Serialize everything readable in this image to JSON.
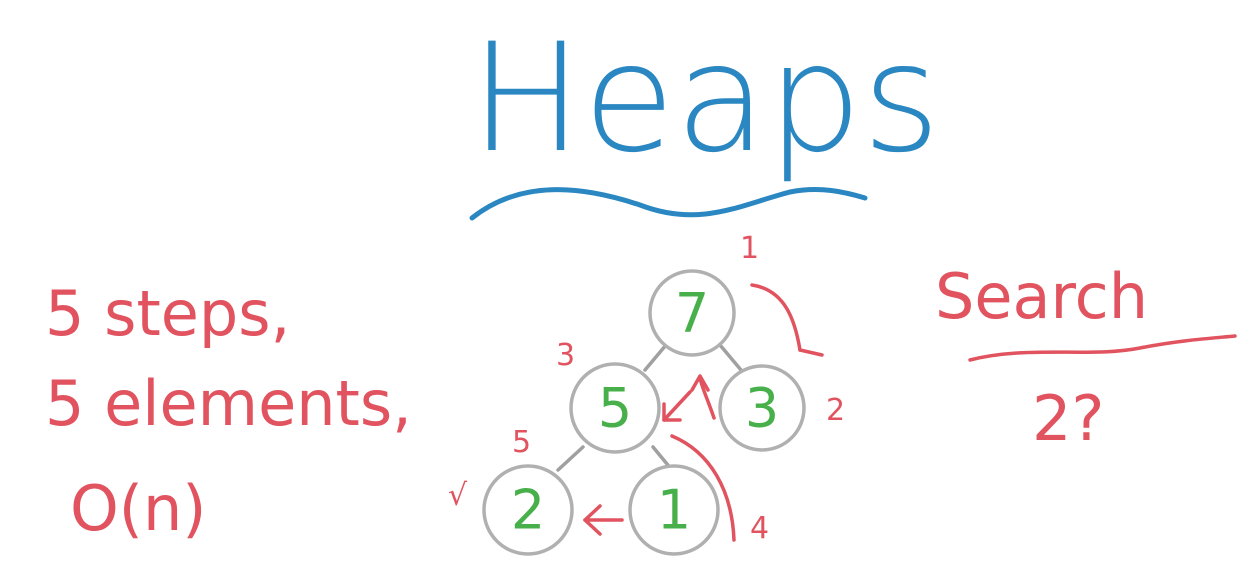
{
  "title": "Heaps",
  "left_notes": [
    "5 steps,",
    "5 elements,",
    "O(n)"
  ],
  "right_notes": {
    "heading": "Search",
    "query": "2?"
  },
  "tree": {
    "nodes": [
      "7",
      "5",
      "3",
      "2",
      "1"
    ]
  },
  "step_labels": [
    "1",
    "2",
    "3",
    "4",
    "5"
  ],
  "checkmark": "√",
  "colors": {
    "title": "#2a87c2",
    "annotation": "#e0535f",
    "node_value": "#47b04a",
    "node_border": "#b0b0b0"
  }
}
